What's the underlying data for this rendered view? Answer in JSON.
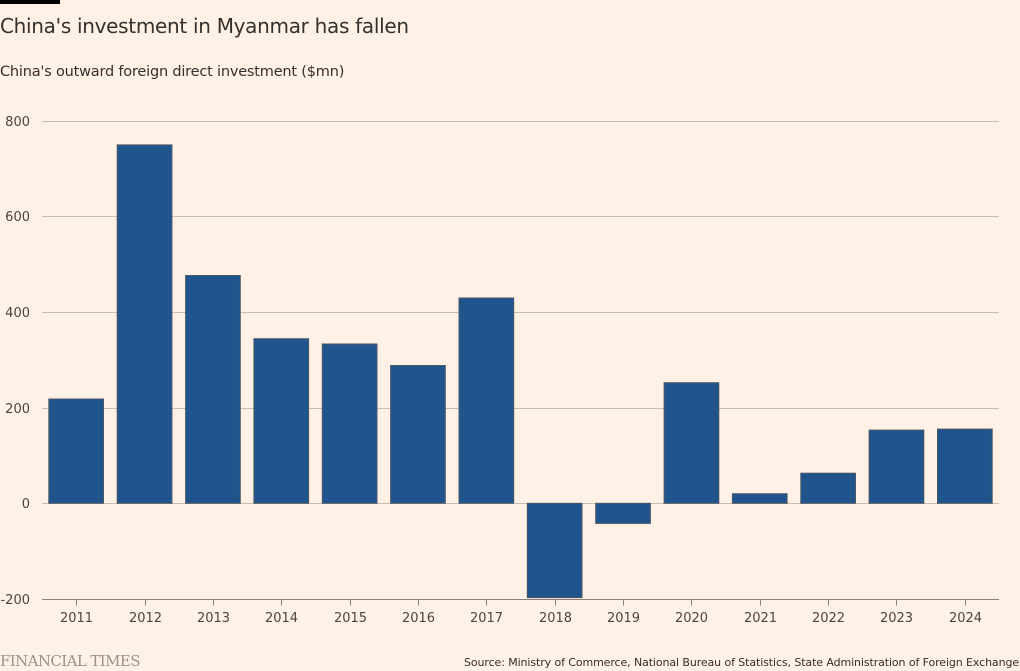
{
  "header": {
    "title": "China's investment in Myanmar has fallen",
    "subtitle": "China's outward foreign direct investment ($mn)"
  },
  "footer": {
    "publisher": "FINANCIAL TIMES",
    "source": "Source: Ministry of Commerce, National Bureau of Statistics, State Administration of Foreign Exchange"
  },
  "colors": {
    "background": "#FFF1E5",
    "bar_fill": "#1F558C",
    "bar_stroke": "#4A5766",
    "gridline": "#CBBDB1",
    "axis": "#8C817A"
  },
  "chart_data": {
    "type": "bar",
    "title": "China's investment in Myanmar has fallen",
    "subtitle": "China's outward foreign direct investment ($mn)",
    "xlabel": "",
    "ylabel": "",
    "categories": [
      "2011",
      "2012",
      "2013",
      "2014",
      "2015",
      "2016",
      "2017",
      "2018",
      "2019",
      "2020",
      "2021",
      "2022",
      "2023",
      "2024"
    ],
    "values": [
      218,
      749,
      476,
      344,
      333,
      288,
      429,
      -197,
      -42,
      252,
      20,
      63,
      153,
      155
    ],
    "ylim": [
      -200,
      800
    ],
    "yticks": [
      -200,
      0,
      200,
      400,
      600,
      800
    ],
    "ytick_labels": [
      "-200",
      "0",
      "200",
      "400",
      "600",
      "800"
    ],
    "grid": true,
    "legend": "none"
  }
}
